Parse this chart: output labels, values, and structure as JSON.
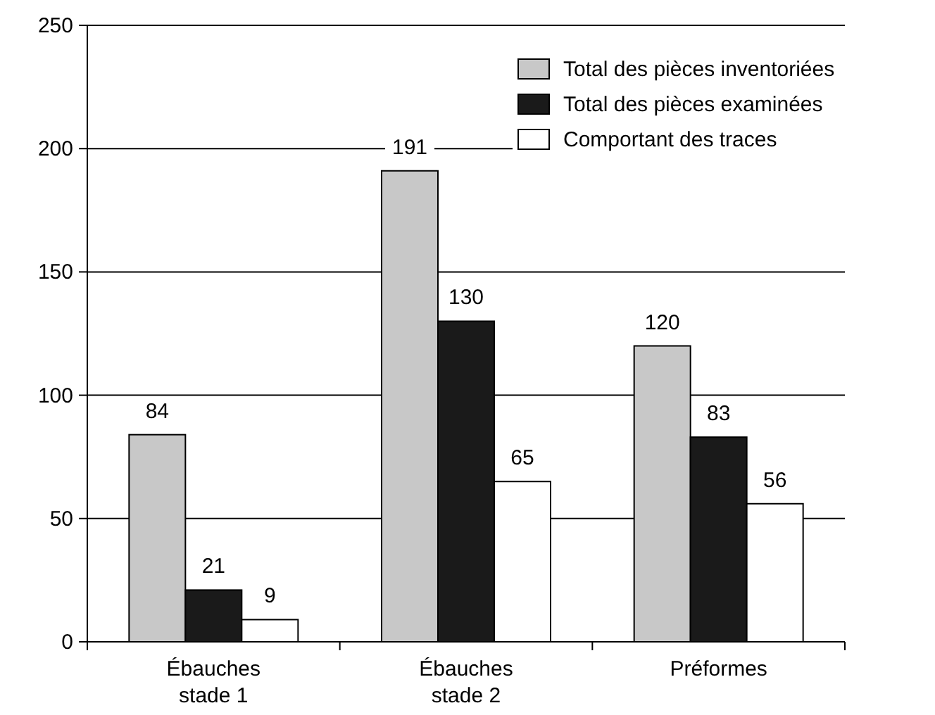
{
  "chart_data": {
    "type": "bar",
    "categories": [
      "Ébauches stade 1",
      "Ébauches stade 2",
      "Préformes"
    ],
    "series": [
      {
        "name": "Total des pièces inventoriées",
        "color": "#c8c8c8",
        "values": [
          84,
          191,
          120
        ]
      },
      {
        "name": "Total des pièces examinées",
        "color": "#1a1a1a",
        "values": [
          21,
          130,
          83
        ]
      },
      {
        "name": "Comportant des traces",
        "color": "#ffffff",
        "values": [
          9,
          65,
          56
        ]
      }
    ],
    "ylim": [
      0,
      250
    ],
    "yticks": [
      0,
      50,
      100,
      150,
      200,
      250
    ],
    "grid": "y",
    "legend": "top right",
    "data_labels": true
  }
}
